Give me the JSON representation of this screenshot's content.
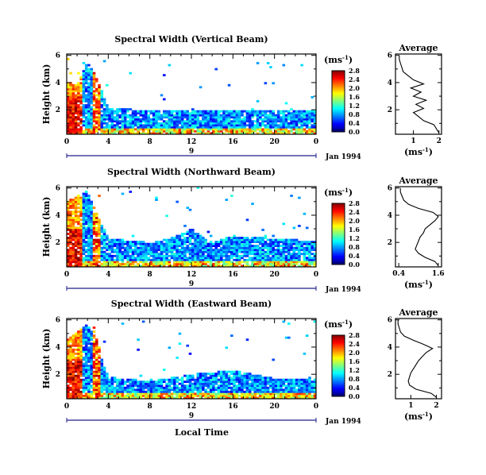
{
  "figure": {
    "xlabel": "Local Time",
    "date_label": "Jan 1994",
    "day_label": "9",
    "unit_label": "(ms",
    "unit_exp": "-1",
    "unit_close": ")"
  },
  "chart_data": [
    {
      "type": "heatmap",
      "title": "Spectral Width (Vertical Beam)",
      "ylabel": "Height (km)",
      "xlabel": "",
      "xlim": [
        0,
        24
      ],
      "xticks": [
        "0",
        "4",
        "8",
        "12",
        "16",
        "20",
        "0"
      ],
      "ylim": [
        0.2,
        6.1
      ],
      "yticks": [
        "2",
        "4",
        "6"
      ],
      "colorbar": {
        "unit": "(ms-1)",
        "range": [
          0.0,
          2.8
        ],
        "ticks": [
          "2.8",
          "2.4",
          "2.0",
          "1.6",
          "1.2",
          "0.8",
          "0.4",
          "0.0"
        ]
      },
      "echo_top_profile_km": [
        [
          0,
          4.1
        ],
        [
          1,
          3.8
        ],
        [
          2,
          5.6
        ],
        [
          3,
          4.2
        ],
        [
          4,
          2.1
        ],
        [
          8,
          2.0
        ],
        [
          12,
          1.9
        ],
        [
          16,
          2.0
        ],
        [
          20,
          2.0
        ],
        [
          24,
          1.9
        ]
      ]
    },
    {
      "type": "heatmap",
      "title": "Spectral Width (Northward Beam)",
      "ylabel": "Height (km)",
      "xlabel": "",
      "xlim": [
        0,
        24
      ],
      "xticks": [
        "0",
        "4",
        "8",
        "12",
        "16",
        "20",
        "0"
      ],
      "ylim": [
        0.2,
        6.1
      ],
      "yticks": [
        "2",
        "4",
        "6"
      ],
      "colorbar": {
        "unit": "(ms-1)",
        "range": [
          0.0,
          2.8
        ],
        "ticks": [
          "2.8",
          "2.4",
          "2.0",
          "1.6",
          "1.2",
          "0.8",
          "0.4",
          "0.0"
        ]
      },
      "echo_top_profile_km": [
        [
          0,
          5.0
        ],
        [
          2,
          5.8
        ],
        [
          3,
          4.0
        ],
        [
          4,
          2.3
        ],
        [
          8,
          2.0
        ],
        [
          10,
          2.3
        ],
        [
          12,
          3.0
        ],
        [
          14,
          2.0
        ],
        [
          16,
          2.5
        ],
        [
          20,
          2.3
        ],
        [
          24,
          2.1
        ]
      ]
    },
    {
      "type": "heatmap",
      "title": "Spectral Width (Eastward Beam)",
      "ylabel": "Height (km)",
      "xlabel": "Local Time",
      "xlim": [
        0,
        24
      ],
      "xticks": [
        "0",
        "4",
        "8",
        "12",
        "16",
        "20",
        "0"
      ],
      "ylim": [
        0.2,
        6.1
      ],
      "yticks": [
        "2",
        "4",
        "6"
      ],
      "colorbar": {
        "unit": "(ms-1)",
        "range": [
          0.0,
          2.8
        ],
        "ticks": [
          "2.8",
          "2.4",
          "2.0",
          "1.6",
          "1.2",
          "0.8",
          "0.4",
          "0.0"
        ]
      },
      "echo_top_profile_km": [
        [
          0,
          4.5
        ],
        [
          2,
          5.7
        ],
        [
          3,
          4.4
        ],
        [
          4,
          1.8
        ],
        [
          8,
          1.5
        ],
        [
          12,
          2.0
        ],
        [
          16,
          2.3
        ],
        [
          20,
          1.7
        ],
        [
          24,
          1.6
        ]
      ]
    },
    {
      "type": "line",
      "title": "Average",
      "xlabel": "(ms-1)",
      "ylabel": "",
      "xlim": [
        0.3,
        2.1
      ],
      "xticks": [
        "1",
        "2"
      ],
      "ylim": [
        0.2,
        6.1
      ],
      "yticks": [
        "2",
        "4",
        "6"
      ],
      "series": [
        {
          "x": [
            2.0,
            1.9,
            1.8,
            1.4,
            1.2,
            1.0,
            1.4,
            1.1,
            1.5,
            1.0,
            1.3,
            0.9,
            1.4,
            1.0,
            0.8,
            0.6,
            0.55,
            0.5,
            0.45,
            0.45
          ],
          "y": [
            0.3,
            0.6,
            0.9,
            1.2,
            1.5,
            1.8,
            2.1,
            2.4,
            2.7,
            3.0,
            3.3,
            3.6,
            3.9,
            4.2,
            4.5,
            4.8,
            5.1,
            5.4,
            5.7,
            6.0
          ]
        }
      ]
    },
    {
      "type": "line",
      "title": "Average",
      "xlabel": "(ms-1)",
      "ylabel": "",
      "xlim": [
        0.3,
        1.7
      ],
      "xticks": [
        "0.4",
        "1.6"
      ],
      "ylim": [
        0.2,
        6.1
      ],
      "yticks": [
        "2",
        "4",
        "6"
      ],
      "series": [
        {
          "x": [
            1.6,
            1.5,
            1.2,
            1.0,
            0.9,
            0.95,
            1.0,
            1.05,
            1.15,
            1.2,
            1.35,
            1.5,
            1.6,
            1.45,
            1.0,
            0.7,
            0.55,
            0.5,
            0.45,
            0.45
          ],
          "y": [
            0.3,
            0.6,
            0.9,
            1.2,
            1.5,
            1.8,
            2.1,
            2.4,
            2.7,
            3.0,
            3.3,
            3.6,
            3.9,
            4.2,
            4.5,
            4.8,
            5.1,
            5.4,
            5.7,
            6.0
          ]
        }
      ]
    },
    {
      "type": "line",
      "title": "Average",
      "xlabel": "(ms-1)",
      "ylabel": "",
      "xlim": [
        0.4,
        2.2
      ],
      "xticks": [
        "1",
        "2"
      ],
      "ylim": [
        0.2,
        6.1
      ],
      "yticks": [
        "2",
        "4",
        "6"
      ],
      "series": [
        {
          "x": [
            2.0,
            1.8,
            1.2,
            0.95,
            0.9,
            0.95,
            1.0,
            1.1,
            1.2,
            1.3,
            1.45,
            1.6,
            1.85,
            1.5,
            1.1,
            0.75,
            0.6,
            0.55,
            0.5,
            0.5
          ],
          "y": [
            0.3,
            0.6,
            0.9,
            1.2,
            1.5,
            1.8,
            2.1,
            2.4,
            2.7,
            3.0,
            3.3,
            3.6,
            3.9,
            4.2,
            4.5,
            4.8,
            5.1,
            5.4,
            5.7,
            6.0
          ]
        }
      ]
    }
  ]
}
